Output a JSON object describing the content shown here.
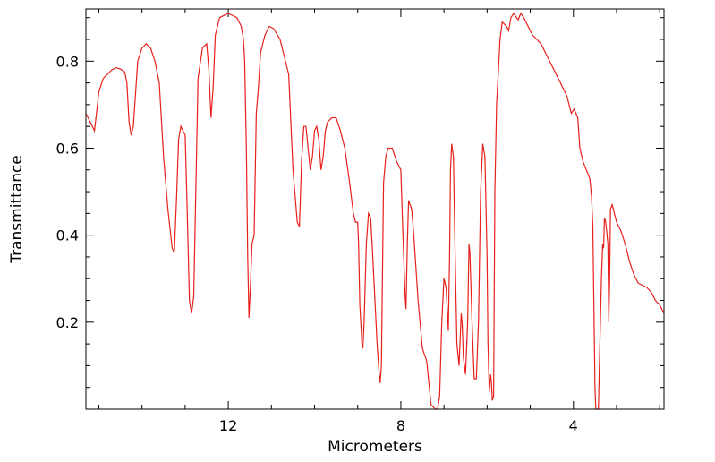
{
  "chart_data": {
    "type": "line",
    "xlabel": "Micrometers",
    "ylabel": "Transmittance",
    "x_reversed": true,
    "xlim": [
      15.3,
      1.9
    ],
    "ylim": [
      0.0,
      0.92
    ],
    "xticks": [
      {
        "value": 12,
        "label": "12"
      },
      {
        "value": 8,
        "label": "8"
      },
      {
        "value": 4,
        "label": "4"
      }
    ],
    "yticks": [
      {
        "value": 0.2,
        "label": "0.2"
      },
      {
        "value": 0.4,
        "label": "0.4"
      },
      {
        "value": 0.6,
        "label": "0.6"
      },
      {
        "value": 0.8,
        "label": "0.8"
      }
    ],
    "grid": false,
    "series": [
      {
        "color": "#e8201c",
        "points": [
          [
            15.3,
            0.68
          ],
          [
            15.2,
            0.66
          ],
          [
            15.1,
            0.64
          ],
          [
            15.0,
            0.73
          ],
          [
            14.9,
            0.76
          ],
          [
            14.8,
            0.77
          ],
          [
            14.7,
            0.78
          ],
          [
            14.6,
            0.785
          ],
          [
            14.5,
            0.782
          ],
          [
            14.4,
            0.775
          ],
          [
            14.35,
            0.75
          ],
          [
            14.3,
            0.66
          ],
          [
            14.25,
            0.63
          ],
          [
            14.2,
            0.65
          ],
          [
            14.1,
            0.8
          ],
          [
            14.0,
            0.83
          ],
          [
            13.9,
            0.84
          ],
          [
            13.8,
            0.83
          ],
          [
            13.7,
            0.8
          ],
          [
            13.6,
            0.75
          ],
          [
            13.5,
            0.58
          ],
          [
            13.4,
            0.46
          ],
          [
            13.3,
            0.37
          ],
          [
            13.25,
            0.36
          ],
          [
            13.2,
            0.48
          ],
          [
            13.15,
            0.62
          ],
          [
            13.1,
            0.65
          ],
          [
            13.0,
            0.63
          ],
          [
            12.95,
            0.45
          ],
          [
            12.9,
            0.25
          ],
          [
            12.85,
            0.22
          ],
          [
            12.8,
            0.26
          ],
          [
            12.7,
            0.76
          ],
          [
            12.6,
            0.83
          ],
          [
            12.5,
            0.84
          ],
          [
            12.45,
            0.78
          ],
          [
            12.4,
            0.67
          ],
          [
            12.35,
            0.74
          ],
          [
            12.3,
            0.86
          ],
          [
            12.2,
            0.9
          ],
          [
            12.0,
            0.91
          ],
          [
            11.8,
            0.9
          ],
          [
            11.7,
            0.88
          ],
          [
            11.65,
            0.85
          ],
          [
            11.62,
            0.8
          ],
          [
            11.58,
            0.6
          ],
          [
            11.55,
            0.35
          ],
          [
            11.52,
            0.21
          ],
          [
            11.48,
            0.3
          ],
          [
            11.45,
            0.38
          ],
          [
            11.4,
            0.4
          ],
          [
            11.35,
            0.68
          ],
          [
            11.3,
            0.74
          ],
          [
            11.25,
            0.82
          ],
          [
            11.15,
            0.86
          ],
          [
            11.05,
            0.88
          ],
          [
            10.95,
            0.875
          ],
          [
            10.8,
            0.85
          ],
          [
            10.7,
            0.81
          ],
          [
            10.6,
            0.77
          ],
          [
            10.5,
            0.55
          ],
          [
            10.4,
            0.43
          ],
          [
            10.35,
            0.42
          ],
          [
            10.3,
            0.57
          ],
          [
            10.25,
            0.65
          ],
          [
            10.2,
            0.65
          ],
          [
            10.15,
            0.6
          ],
          [
            10.1,
            0.55
          ],
          [
            10.05,
            0.58
          ],
          [
            10.0,
            0.64
          ],
          [
            9.95,
            0.65
          ],
          [
            9.9,
            0.62
          ],
          [
            9.85,
            0.55
          ],
          [
            9.8,
            0.58
          ],
          [
            9.75,
            0.64
          ],
          [
            9.7,
            0.66
          ],
          [
            9.6,
            0.67
          ],
          [
            9.5,
            0.67
          ],
          [
            9.4,
            0.64
          ],
          [
            9.3,
            0.6
          ],
          [
            9.2,
            0.53
          ],
          [
            9.1,
            0.45
          ],
          [
            9.05,
            0.43
          ],
          [
            9.0,
            0.43
          ],
          [
            8.98,
            0.38
          ],
          [
            8.95,
            0.24
          ],
          [
            8.9,
            0.15
          ],
          [
            8.88,
            0.14
          ],
          [
            8.85,
            0.2
          ],
          [
            8.8,
            0.38
          ],
          [
            8.75,
            0.45
          ],
          [
            8.7,
            0.44
          ],
          [
            8.65,
            0.35
          ],
          [
            8.6,
            0.25
          ],
          [
            8.55,
            0.15
          ],
          [
            8.5,
            0.08
          ],
          [
            8.48,
            0.06
          ],
          [
            8.45,
            0.1
          ],
          [
            8.4,
            0.52
          ],
          [
            8.35,
            0.58
          ],
          [
            8.3,
            0.6
          ],
          [
            8.2,
            0.6
          ],
          [
            8.1,
            0.57
          ],
          [
            8.0,
            0.55
          ],
          [
            7.95,
            0.4
          ],
          [
            7.9,
            0.26
          ],
          [
            7.88,
            0.23
          ],
          [
            7.85,
            0.38
          ],
          [
            7.82,
            0.48
          ],
          [
            7.75,
            0.46
          ],
          [
            7.7,
            0.4
          ],
          [
            7.6,
            0.25
          ],
          [
            7.5,
            0.14
          ],
          [
            7.4,
            0.11
          ],
          [
            7.35,
            0.06
          ],
          [
            7.3,
            0.01
          ],
          [
            7.2,
            0.0
          ],
          [
            7.15,
            0.0
          ],
          [
            7.1,
            0.03
          ],
          [
            7.05,
            0.2
          ],
          [
            7.0,
            0.3
          ],
          [
            6.95,
            0.28
          ],
          [
            6.9,
            0.18
          ],
          [
            6.87,
            0.35
          ],
          [
            6.85,
            0.55
          ],
          [
            6.82,
            0.61
          ],
          [
            6.78,
            0.58
          ],
          [
            6.75,
            0.4
          ],
          [
            6.7,
            0.15
          ],
          [
            6.65,
            0.1
          ],
          [
            6.6,
            0.22
          ],
          [
            6.58,
            0.2
          ],
          [
            6.55,
            0.12
          ],
          [
            6.5,
            0.08
          ],
          [
            6.45,
            0.2
          ],
          [
            6.42,
            0.38
          ],
          [
            6.4,
            0.36
          ],
          [
            6.35,
            0.2
          ],
          [
            6.3,
            0.07
          ],
          [
            6.25,
            0.07
          ],
          [
            6.2,
            0.2
          ],
          [
            6.15,
            0.5
          ],
          [
            6.1,
            0.61
          ],
          [
            6.05,
            0.58
          ],
          [
            6.0,
            0.35
          ],
          [
            5.98,
            0.15
          ],
          [
            5.95,
            0.04
          ],
          [
            5.92,
            0.08
          ],
          [
            5.9,
            0.06
          ],
          [
            5.88,
            0.02
          ],
          [
            5.85,
            0.03
          ],
          [
            5.82,
            0.5
          ],
          [
            5.78,
            0.7
          ],
          [
            5.7,
            0.85
          ],
          [
            5.65,
            0.89
          ],
          [
            5.55,
            0.88
          ],
          [
            5.5,
            0.87
          ],
          [
            5.45,
            0.9
          ],
          [
            5.38,
            0.91
          ],
          [
            5.32,
            0.9
          ],
          [
            5.28,
            0.895
          ],
          [
            5.22,
            0.91
          ],
          [
            5.15,
            0.9
          ],
          [
            5.05,
            0.88
          ],
          [
            4.95,
            0.86
          ],
          [
            4.85,
            0.85
          ],
          [
            4.75,
            0.84
          ],
          [
            4.65,
            0.82
          ],
          [
            4.55,
            0.8
          ],
          [
            4.45,
            0.78
          ],
          [
            4.35,
            0.76
          ],
          [
            4.25,
            0.74
          ],
          [
            4.15,
            0.72
          ],
          [
            4.05,
            0.68
          ],
          [
            3.98,
            0.69
          ],
          [
            3.9,
            0.67
          ],
          [
            3.85,
            0.6
          ],
          [
            3.78,
            0.57
          ],
          [
            3.7,
            0.55
          ],
          [
            3.62,
            0.53
          ],
          [
            3.58,
            0.49
          ],
          [
            3.55,
            0.42
          ],
          [
            3.52,
            0.2
          ],
          [
            3.5,
            0.05
          ],
          [
            3.48,
            0.0
          ],
          [
            3.42,
            0.0
          ],
          [
            3.38,
            0.18
          ],
          [
            3.35,
            0.3
          ],
          [
            3.32,
            0.38
          ],
          [
            3.3,
            0.37
          ],
          [
            3.28,
            0.44
          ],
          [
            3.25,
            0.43
          ],
          [
            3.2,
            0.38
          ],
          [
            3.18,
            0.2
          ],
          [
            3.16,
            0.3
          ],
          [
            3.14,
            0.46
          ],
          [
            3.1,
            0.47
          ],
          [
            3.0,
            0.43
          ],
          [
            2.9,
            0.41
          ],
          [
            2.8,
            0.38
          ],
          [
            2.7,
            0.34
          ],
          [
            2.6,
            0.31
          ],
          [
            2.5,
            0.29
          ],
          [
            2.4,
            0.285
          ],
          [
            2.3,
            0.28
          ],
          [
            2.2,
            0.27
          ],
          [
            2.1,
            0.25
          ],
          [
            2.0,
            0.24
          ],
          [
            1.9,
            0.22
          ]
        ]
      }
    ]
  }
}
